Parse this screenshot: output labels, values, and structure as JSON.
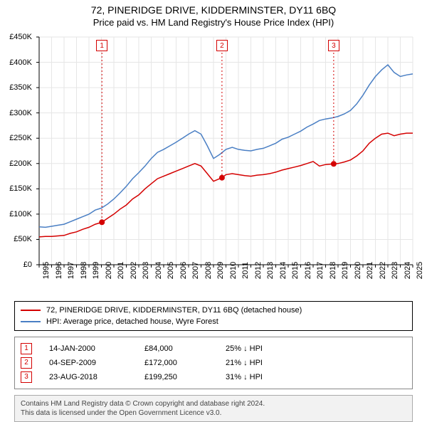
{
  "title": "72, PINERIDGE DRIVE, KIDDERMINSTER, DY11 6BQ",
  "subtitle": "Price paid vs. HM Land Registry's House Price Index (HPI)",
  "chart": {
    "type": "line",
    "background_color": "#ffffff",
    "grid_color": "#e6e6e6",
    "axis_color": "#000000",
    "xlim": [
      1995,
      2025
    ],
    "ylim": [
      0,
      450000
    ],
    "ytick_step": 50000,
    "ytick_labels": [
      "£0",
      "£50K",
      "£100K",
      "£150K",
      "£200K",
      "£250K",
      "£300K",
      "£350K",
      "£400K",
      "£450K"
    ],
    "xticks": [
      1995,
      1996,
      1997,
      1998,
      1999,
      2000,
      2001,
      2002,
      2003,
      2004,
      2005,
      2006,
      2007,
      2008,
      2009,
      2010,
      2011,
      2012,
      2013,
      2014,
      2015,
      2016,
      2017,
      2018,
      2019,
      2020,
      2021,
      2022,
      2023,
      2024,
      2025
    ],
    "xtick_labels": [
      "1995",
      "1996",
      "1997",
      "1998",
      "1999",
      "2000",
      "2001",
      "2002",
      "2003",
      "2004",
      "2005",
      "2006",
      "2007",
      "2008",
      "2009",
      "2010",
      "2011",
      "2012",
      "2013",
      "2014",
      "2015",
      "2016",
      "2017",
      "2018",
      "2019",
      "2020",
      "2021",
      "2022",
      "2023",
      "2024",
      "2025"
    ],
    "series": [
      {
        "name": "price_paid",
        "label": "72, PINERIDGE DRIVE, KIDDERMINSTER, DY11 6BQ (detached house)",
        "color": "#d40000",
        "line_width": 1.5,
        "data": [
          [
            1995.0,
            55000
          ],
          [
            1995.5,
            56000
          ],
          [
            1996.0,
            56000
          ],
          [
            1996.5,
            57000
          ],
          [
            1997.0,
            58000
          ],
          [
            1997.5,
            62000
          ],
          [
            1998.0,
            65000
          ],
          [
            1998.5,
            70000
          ],
          [
            1999.0,
            74000
          ],
          [
            1999.5,
            80000
          ],
          [
            2000.04,
            84000
          ],
          [
            2000.5,
            92000
          ],
          [
            2001.0,
            100000
          ],
          [
            2001.5,
            110000
          ],
          [
            2002.0,
            118000
          ],
          [
            2002.5,
            130000
          ],
          [
            2003.0,
            138000
          ],
          [
            2003.5,
            150000
          ],
          [
            2004.0,
            160000
          ],
          [
            2004.5,
            170000
          ],
          [
            2005.0,
            175000
          ],
          [
            2005.5,
            180000
          ],
          [
            2006.0,
            185000
          ],
          [
            2006.5,
            190000
          ],
          [
            2007.0,
            195000
          ],
          [
            2007.5,
            200000
          ],
          [
            2008.0,
            195000
          ],
          [
            2008.5,
            180000
          ],
          [
            2009.0,
            165000
          ],
          [
            2009.68,
            172000
          ],
          [
            2010.0,
            178000
          ],
          [
            2010.5,
            180000
          ],
          [
            2011.0,
            178000
          ],
          [
            2011.5,
            176000
          ],
          [
            2012.0,
            175000
          ],
          [
            2012.5,
            177000
          ],
          [
            2013.0,
            178000
          ],
          [
            2013.5,
            180000
          ],
          [
            2014.0,
            183000
          ],
          [
            2014.5,
            187000
          ],
          [
            2015.0,
            190000
          ],
          [
            2015.5,
            193000
          ],
          [
            2016.0,
            196000
          ],
          [
            2016.5,
            200000
          ],
          [
            2017.0,
            204000
          ],
          [
            2017.5,
            195000
          ],
          [
            2018.0,
            198000
          ],
          [
            2018.65,
            199250
          ],
          [
            2019.0,
            200000
          ],
          [
            2019.5,
            203000
          ],
          [
            2020.0,
            207000
          ],
          [
            2020.5,
            215000
          ],
          [
            2021.0,
            225000
          ],
          [
            2021.5,
            240000
          ],
          [
            2022.0,
            250000
          ],
          [
            2022.5,
            258000
          ],
          [
            2023.0,
            260000
          ],
          [
            2023.5,
            255000
          ],
          [
            2024.0,
            258000
          ],
          [
            2024.5,
            260000
          ],
          [
            2025.0,
            260000
          ]
        ]
      },
      {
        "name": "hpi",
        "label": "HPI: Average price, detached house, Wyre Forest",
        "color": "#4a7fc4",
        "line_width": 1.5,
        "data": [
          [
            1995.0,
            75000
          ],
          [
            1995.5,
            74000
          ],
          [
            1996.0,
            76000
          ],
          [
            1996.5,
            78000
          ],
          [
            1997.0,
            80000
          ],
          [
            1997.5,
            85000
          ],
          [
            1998.0,
            90000
          ],
          [
            1998.5,
            95000
          ],
          [
            1999.0,
            100000
          ],
          [
            1999.5,
            108000
          ],
          [
            2000.0,
            112000
          ],
          [
            2000.5,
            120000
          ],
          [
            2001.0,
            130000
          ],
          [
            2001.5,
            142000
          ],
          [
            2002.0,
            155000
          ],
          [
            2002.5,
            170000
          ],
          [
            2003.0,
            182000
          ],
          [
            2003.5,
            195000
          ],
          [
            2004.0,
            210000
          ],
          [
            2004.5,
            222000
          ],
          [
            2005.0,
            228000
          ],
          [
            2005.5,
            235000
          ],
          [
            2006.0,
            242000
          ],
          [
            2006.5,
            250000
          ],
          [
            2007.0,
            258000
          ],
          [
            2007.5,
            265000
          ],
          [
            2008.0,
            258000
          ],
          [
            2008.5,
            235000
          ],
          [
            2009.0,
            210000
          ],
          [
            2009.5,
            218000
          ],
          [
            2010.0,
            228000
          ],
          [
            2010.5,
            232000
          ],
          [
            2011.0,
            228000
          ],
          [
            2011.5,
            226000
          ],
          [
            2012.0,
            225000
          ],
          [
            2012.5,
            228000
          ],
          [
            2013.0,
            230000
          ],
          [
            2013.5,
            235000
          ],
          [
            2014.0,
            240000
          ],
          [
            2014.5,
            248000
          ],
          [
            2015.0,
            252000
          ],
          [
            2015.5,
            258000
          ],
          [
            2016.0,
            264000
          ],
          [
            2016.5,
            272000
          ],
          [
            2017.0,
            278000
          ],
          [
            2017.5,
            285000
          ],
          [
            2018.0,
            288000
          ],
          [
            2018.5,
            290000
          ],
          [
            2019.0,
            293000
          ],
          [
            2019.5,
            298000
          ],
          [
            2020.0,
            305000
          ],
          [
            2020.5,
            318000
          ],
          [
            2021.0,
            335000
          ],
          [
            2021.5,
            355000
          ],
          [
            2022.0,
            372000
          ],
          [
            2022.5,
            385000
          ],
          [
            2023.0,
            395000
          ],
          [
            2023.5,
            380000
          ],
          [
            2024.0,
            372000
          ],
          [
            2024.5,
            375000
          ],
          [
            2025.0,
            377000
          ]
        ]
      }
    ],
    "sale_markers": [
      {
        "index": "1",
        "x": 2000.04,
        "y": 84000,
        "color": "#d40000"
      },
      {
        "index": "2",
        "x": 2009.68,
        "y": 172000,
        "color": "#d40000"
      },
      {
        "index": "3",
        "x": 2018.65,
        "y": 199250,
        "color": "#d40000"
      }
    ]
  },
  "legend": {
    "items": [
      {
        "color": "#d40000",
        "label": "72, PINERIDGE DRIVE, KIDDERMINSTER, DY11 6BQ (detached house)"
      },
      {
        "color": "#4a7fc4",
        "label": "HPI: Average price, detached house, Wyre Forest"
      }
    ]
  },
  "sales": [
    {
      "index": "1",
      "date": "14-JAN-2000",
      "price": "£84,000",
      "hpi": "25% ↓ HPI",
      "color": "#d40000"
    },
    {
      "index": "2",
      "date": "04-SEP-2009",
      "price": "£172,000",
      "hpi": "21% ↓ HPI",
      "color": "#d40000"
    },
    {
      "index": "3",
      "date": "23-AUG-2018",
      "price": "£199,250",
      "hpi": "31% ↓ HPI",
      "color": "#d40000"
    }
  ],
  "credits": {
    "line1": "Contains HM Land Registry data © Crown copyright and database right 2024.",
    "line2": "This data is licensed under the Open Government Licence v3.0."
  }
}
